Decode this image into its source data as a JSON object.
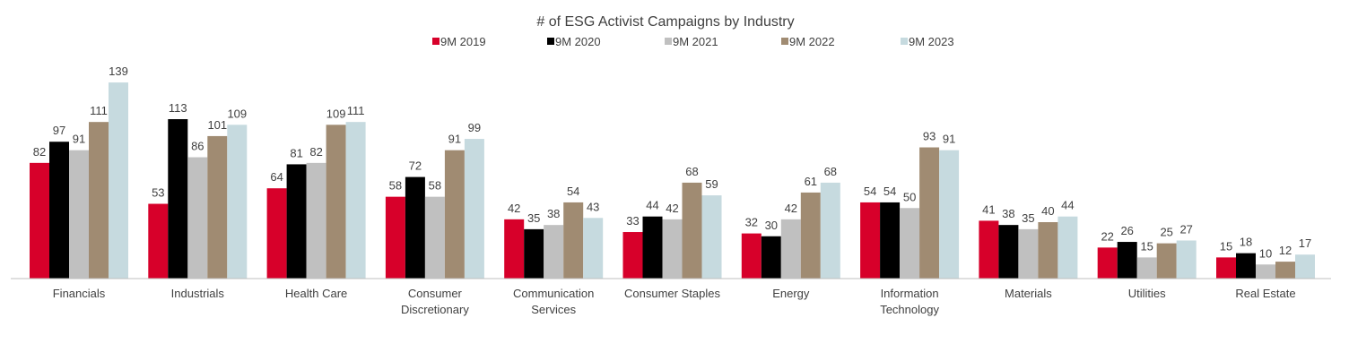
{
  "chart_data": {
    "type": "bar",
    "title": "# of ESG Activist Campaigns  by Industry",
    "categories": [
      [
        "Financials"
      ],
      [
        "Industrials"
      ],
      [
        "Health Care"
      ],
      [
        "Consumer",
        "Discretionary"
      ],
      [
        "Communication",
        "Services"
      ],
      [
        "Consumer Staples"
      ],
      [
        "Energy"
      ],
      [
        "Information",
        "Technology"
      ],
      [
        "Materials"
      ],
      [
        "Utilities"
      ],
      [
        "Real Estate"
      ]
    ],
    "series": [
      {
        "name": "9M 2019",
        "color": "#d7002a",
        "values": [
          82,
          53,
          64,
          58,
          42,
          33,
          32,
          54,
          41,
          22,
          15
        ]
      },
      {
        "name": "9M 2020",
        "color": "#000000",
        "values": [
          97,
          113,
          81,
          72,
          35,
          44,
          30,
          54,
          38,
          26,
          18
        ]
      },
      {
        "name": "9M 2021",
        "color": "#c0c0c0",
        "values": [
          91,
          86,
          82,
          58,
          38,
          42,
          42,
          50,
          35,
          15,
          10
        ]
      },
      {
        "name": "9M 2022",
        "color": "#a08b72",
        "values": [
          111,
          101,
          109,
          91,
          54,
          68,
          61,
          93,
          40,
          25,
          12
        ]
      },
      {
        "name": "9M 2023",
        "color": "#c6dadf",
        "values": [
          139,
          109,
          111,
          99,
          43,
          59,
          68,
          91,
          44,
          27,
          17
        ]
      }
    ],
    "ylim": [
      0,
      150
    ],
    "legend_position": "top",
    "grid": false,
    "data_labels": true
  }
}
